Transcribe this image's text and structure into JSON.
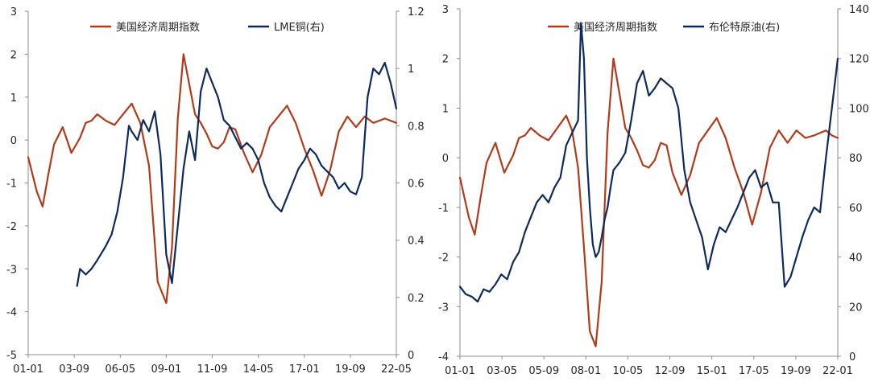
{
  "colors": {
    "cycle": "#B23A1A",
    "asset": "#0D2A5E",
    "axis": "#8C8C8C",
    "text": "#262626"
  },
  "chart_data": [
    {
      "type": "line",
      "title": "",
      "legend": [
        "美国经济周期指数",
        "LME铜(右)"
      ],
      "legend_position": "top",
      "grid": false,
      "x_tick_labels": [
        "01-01",
        "03-09",
        "06-05",
        "09-01",
        "11-09",
        "14-05",
        "17-01",
        "19-09",
        "22-05"
      ],
      "x_range": [
        0,
        256
      ],
      "y_left": {
        "ylim": [
          -5,
          3
        ],
        "ticks": [
          "-5",
          "-4",
          "-3",
          "-2",
          "-1",
          "0",
          "1",
          "2",
          "3"
        ]
      },
      "y_right": {
        "ylim": [
          0,
          1.2
        ],
        "ticks": [
          "0",
          "0.2",
          "0.4",
          "0.6",
          "0.8",
          "1",
          "1.2"
        ]
      },
      "series": [
        {
          "name": "美国经济周期指数",
          "axis": "left",
          "x": [
            0,
            6,
            10,
            14,
            18,
            24,
            30,
            36,
            40,
            44,
            48,
            54,
            60,
            66,
            72,
            78,
            84,
            90,
            96,
            100,
            104,
            108,
            112,
            116,
            120,
            124,
            128,
            132,
            136,
            140,
            144,
            150,
            156,
            162,
            168,
            174,
            180,
            186,
            192,
            198,
            204,
            210,
            216,
            222,
            228,
            234,
            240,
            244,
            248,
            252,
            256
          ],
          "values": [
            -0.4,
            -1.2,
            -1.55,
            -0.8,
            -0.1,
            0.3,
            -0.3,
            0.05,
            0.4,
            0.45,
            0.6,
            0.45,
            0.35,
            0.6,
            0.85,
            0.4,
            -0.6,
            -3.3,
            -3.8,
            -2.5,
            0.5,
            2.0,
            1.3,
            0.6,
            0.4,
            0.15,
            -0.15,
            -0.2,
            -0.05,
            0.3,
            0.25,
            -0.3,
            -0.75,
            -0.35,
            0.3,
            0.55,
            0.8,
            0.4,
            -0.2,
            -0.7,
            -1.3,
            -0.7,
            0.2,
            0.55,
            0.3,
            0.55,
            0.4,
            0.45,
            0.5,
            0.45,
            0.4
          ]
        },
        {
          "name": "LME铜(右)",
          "axis": "right",
          "x": [
            34,
            36,
            40,
            44,
            48,
            54,
            58,
            62,
            66,
            70,
            72,
            76,
            80,
            84,
            88,
            92,
            96,
            100,
            104,
            108,
            112,
            116,
            120,
            124,
            128,
            132,
            136,
            140,
            144,
            148,
            152,
            156,
            160,
            164,
            168,
            172,
            176,
            180,
            184,
            188,
            192,
            196,
            200,
            204,
            208,
            212,
            216,
            220,
            224,
            228,
            232,
            236,
            240,
            244,
            248,
            252,
            256
          ],
          "values": [
            0.24,
            0.3,
            0.28,
            0.3,
            0.33,
            0.38,
            0.42,
            0.5,
            0.62,
            0.8,
            0.78,
            0.75,
            0.82,
            0.78,
            0.85,
            0.7,
            0.35,
            0.25,
            0.45,
            0.65,
            0.78,
            0.68,
            0.92,
            1.0,
            0.95,
            0.9,
            0.82,
            0.8,
            0.76,
            0.72,
            0.74,
            0.72,
            0.68,
            0.6,
            0.55,
            0.52,
            0.5,
            0.55,
            0.6,
            0.65,
            0.68,
            0.72,
            0.7,
            0.66,
            0.64,
            0.62,
            0.58,
            0.6,
            0.57,
            0.56,
            0.62,
            0.9,
            1.0,
            0.98,
            1.02,
            0.95,
            0.86
          ]
        }
      ]
    },
    {
      "type": "line",
      "title": "",
      "legend": [
        "美国经济周期指数",
        "布伦特原油(右)"
      ],
      "legend_position": "top",
      "grid": false,
      "x_tick_labels": [
        "01-01",
        "03-05",
        "05-09",
        "08-01",
        "10-05",
        "12-09",
        "15-01",
        "17-05",
        "19-09",
        "22-01"
      ],
      "x_range": [
        0,
        256
      ],
      "y_left": {
        "ylim": [
          -4,
          3
        ],
        "ticks": [
          "-4",
          "-3",
          "-2",
          "-1",
          "0",
          "1",
          "2",
          "3"
        ]
      },
      "y_right": {
        "ylim": [
          0,
          140
        ],
        "ticks": [
          "0",
          "20",
          "40",
          "60",
          "80",
          "100",
          "120",
          "140"
        ]
      },
      "series": [
        {
          "name": "美国经济周期指数",
          "axis": "left",
          "x": [
            0,
            6,
            10,
            14,
            18,
            24,
            30,
            36,
            40,
            44,
            48,
            54,
            60,
            66,
            72,
            76,
            80,
            84,
            88,
            92,
            96,
            100,
            104,
            108,
            112,
            116,
            120,
            124,
            128,
            132,
            136,
            140,
            144,
            150,
            156,
            162,
            168,
            174,
            180,
            186,
            192,
            198,
            204,
            210,
            216,
            222,
            228,
            234,
            240,
            244,
            248,
            252,
            256
          ],
          "values": [
            -0.4,
            -1.2,
            -1.55,
            -0.8,
            -0.1,
            0.3,
            -0.3,
            0.05,
            0.4,
            0.45,
            0.6,
            0.45,
            0.35,
            0.6,
            0.85,
            0.55,
            -0.2,
            -1.8,
            -3.5,
            -3.8,
            -2.5,
            0.5,
            2.0,
            1.3,
            0.6,
            0.4,
            0.15,
            -0.15,
            -0.2,
            -0.05,
            0.3,
            0.25,
            -0.3,
            -0.75,
            -0.35,
            0.3,
            0.55,
            0.8,
            0.4,
            -0.2,
            -0.7,
            -1.35,
            -0.7,
            0.2,
            0.55,
            0.3,
            0.55,
            0.4,
            0.45,
            0.5,
            0.55,
            0.45,
            0.4
          ]
        },
        {
          "name": "布伦特原油(右)",
          "axis": "right",
          "x": [
            0,
            4,
            8,
            12,
            16,
            20,
            24,
            28,
            32,
            36,
            40,
            44,
            48,
            52,
            56,
            60,
            64,
            68,
            72,
            76,
            80,
            82,
            84,
            86,
            88,
            90,
            92,
            94,
            96,
            98,
            100,
            102,
            104,
            108,
            112,
            116,
            120,
            124,
            128,
            132,
            136,
            140,
            144,
            148,
            152,
            156,
            160,
            164,
            168,
            172,
            176,
            180,
            184,
            188,
            192,
            196,
            200,
            204,
            208,
            212,
            216,
            220,
            224,
            228,
            232,
            236,
            240,
            244,
            248,
            252,
            256
          ],
          "values": [
            28,
            25,
            24,
            22,
            27,
            26,
            29,
            33,
            31,
            38,
            42,
            50,
            56,
            62,
            65,
            62,
            68,
            72,
            85,
            90,
            95,
            134,
            120,
            80,
            60,
            45,
            40,
            42,
            48,
            55,
            60,
            68,
            75,
            78,
            82,
            95,
            110,
            115,
            105,
            108,
            112,
            110,
            108,
            100,
            75,
            62,
            55,
            48,
            35,
            45,
            52,
            50,
            55,
            60,
            66,
            72,
            75,
            68,
            70,
            62,
            62,
            28,
            32,
            40,
            48,
            55,
            60,
            58,
            80,
            100,
            120
          ]
        }
      ]
    }
  ]
}
